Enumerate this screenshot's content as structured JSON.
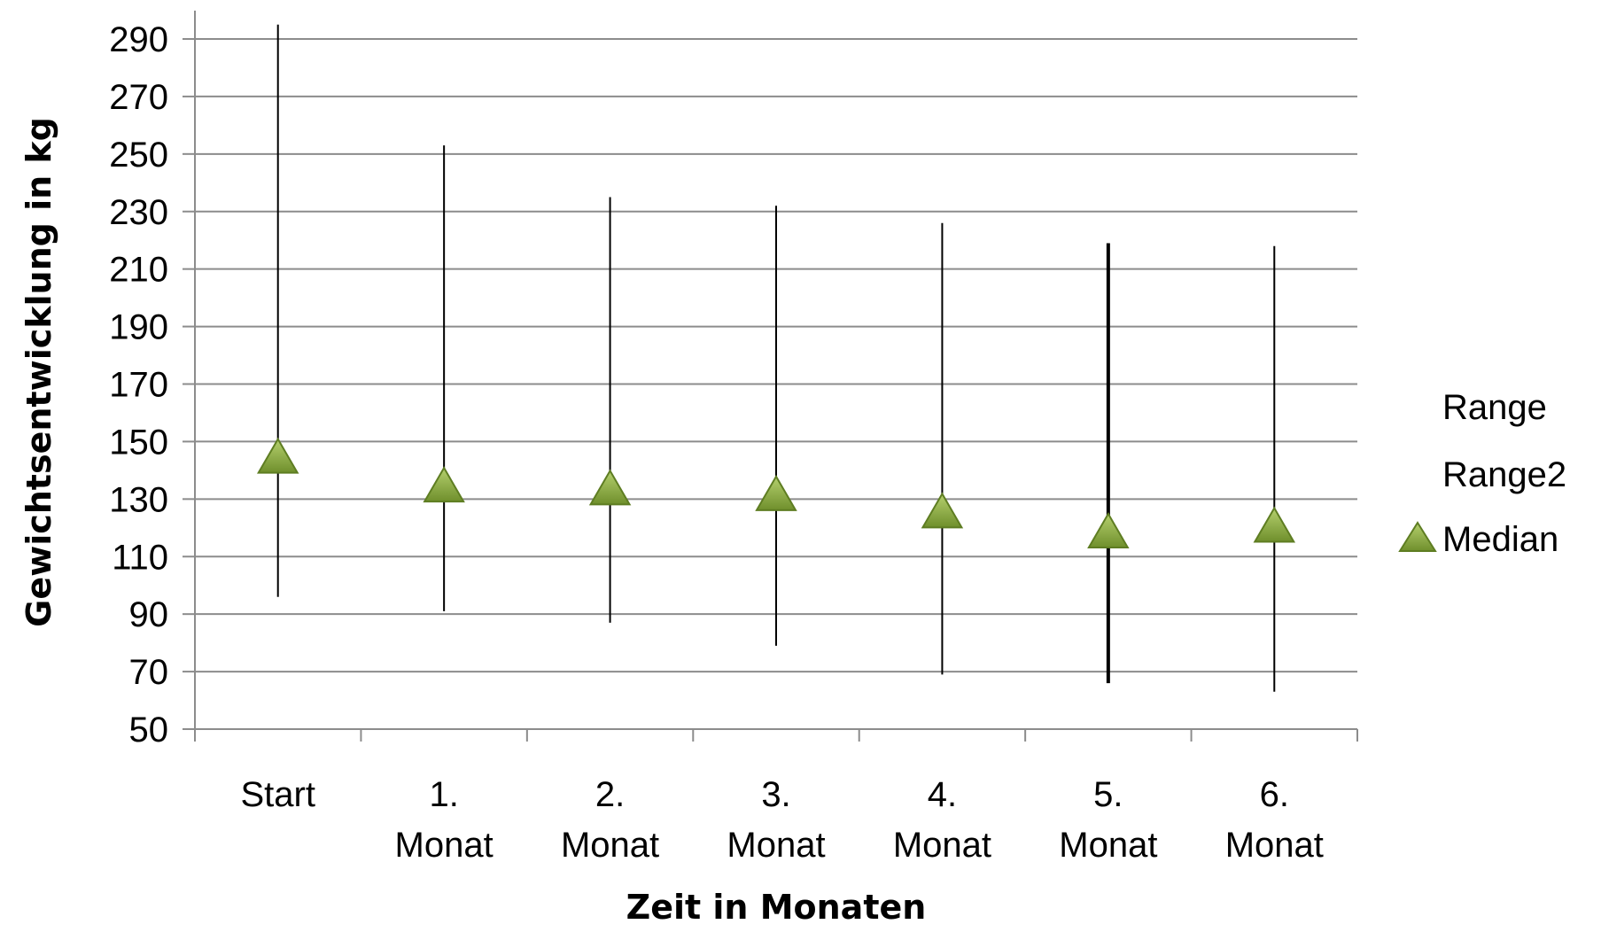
{
  "chart_data": {
    "type": "scatter",
    "title": "",
    "xlabel": "Zeit in Monaten",
    "ylabel": "Gewichtsentwicklung in kg",
    "ylim": [
      50,
      290
    ],
    "yticks": [
      50,
      70,
      90,
      110,
      130,
      150,
      170,
      190,
      210,
      230,
      250,
      270,
      290
    ],
    "grid": "horizontal",
    "legend_position": "right",
    "categories": [
      [
        "Start"
      ],
      [
        "1.",
        "Monat"
      ],
      [
        "2.",
        "Monat"
      ],
      [
        "3.",
        "Monat"
      ],
      [
        "4.",
        "Monat"
      ],
      [
        "5.",
        "Monat"
      ],
      [
        "6.",
        "Monat"
      ]
    ],
    "series": [
      {
        "name": "Range",
        "type": "range",
        "color": "#000000",
        "low": [
          96,
          91,
          87,
          79,
          69,
          66,
          63
        ],
        "high": [
          295,
          253,
          235,
          232,
          226,
          219,
          218
        ]
      },
      {
        "name": "Range2",
        "type": "range",
        "color": "#000000"
      },
      {
        "name": "Median",
        "type": "scatter",
        "marker": "triangle",
        "color": "#8db04a",
        "values": [
          145,
          135,
          134,
          132,
          126,
          119,
          121
        ]
      }
    ]
  }
}
